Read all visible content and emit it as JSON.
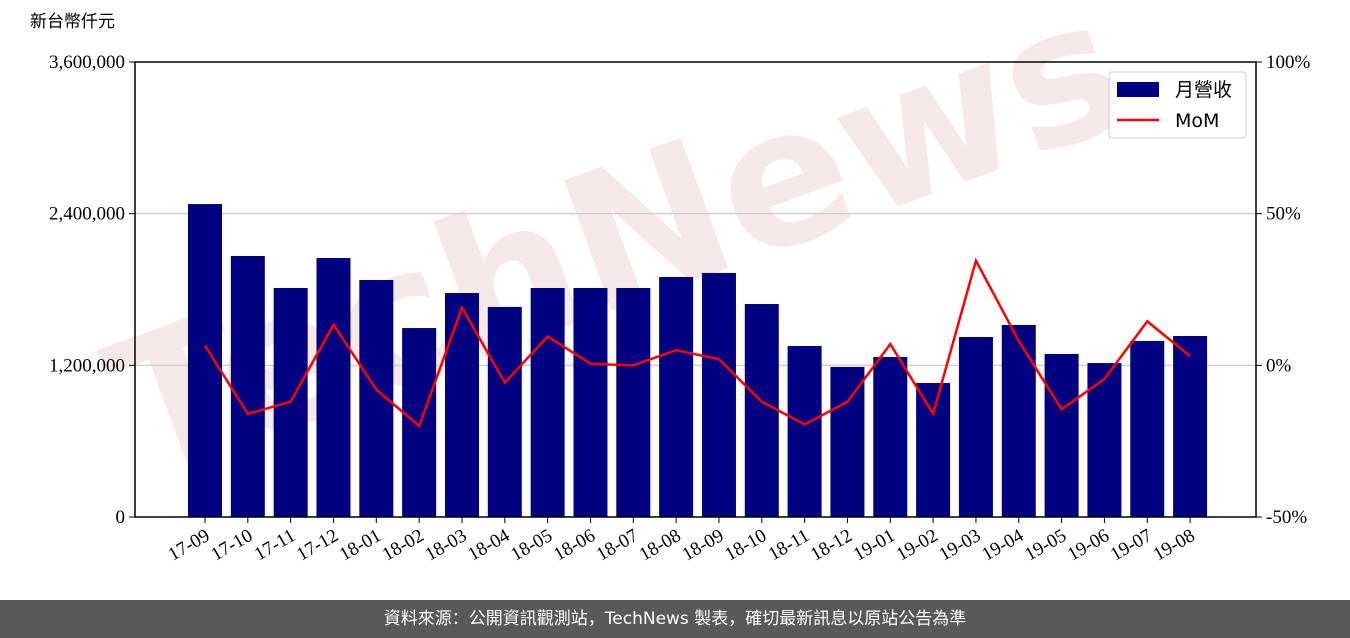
{
  "chart_data": {
    "type": "bar",
    "y_label": "新台幣仟元",
    "watermark": "TechNews",
    "categories": [
      "17-09",
      "17-10",
      "17-11",
      "17-12",
      "18-01",
      "18-02",
      "18-03",
      "18-04",
      "18-05",
      "18-06",
      "18-07",
      "18-08",
      "18-09",
      "18-10",
      "18-11",
      "18-12",
      "19-01",
      "19-02",
      "19-03",
      "19-04",
      "19-05",
      "19-06",
      "19-07",
      "19-08"
    ],
    "series": [
      {
        "name": "月營收",
        "type": "bar",
        "color": "#000080",
        "values": [
          2476000,
          2065000,
          1812000,
          2049000,
          1875000,
          1495000,
          1772000,
          1662000,
          1812000,
          1812000,
          1812000,
          1899000,
          1931000,
          1685000,
          1353000,
          1187000,
          1266000,
          1060000,
          1424000,
          1519000,
          1290000,
          1218000,
          1393000,
          1432000
        ]
      },
      {
        "name": "MoM",
        "type": "line",
        "axis": "y2",
        "color": "#ff0000",
        "values": [
          6.5,
          -16,
          -12,
          13.4,
          -8,
          -20,
          19,
          -5.7,
          9.5,
          0.5,
          0,
          5,
          2,
          -12,
          -19.5,
          -12,
          7,
          -16,
          34.5,
          8,
          -14.5,
          -4.5,
          14.5,
          3
        ]
      }
    ],
    "ylim": [
      0,
      3600000
    ],
    "yticks": [
      {
        "value": 0,
        "label": "0"
      },
      {
        "value": 1200000,
        "label": "1,200,000"
      },
      {
        "value": 2400000,
        "label": "2,400,000"
      },
      {
        "value": 3600000,
        "label": "3,600,000"
      }
    ],
    "y2lim": [
      -50,
      100
    ],
    "y2ticks": [
      {
        "value": -50,
        "label": "-50%"
      },
      {
        "value": 0,
        "label": "0%"
      },
      {
        "value": 50,
        "label": "50%"
      },
      {
        "value": 100,
        "label": "100%"
      }
    ],
    "grid": true,
    "legend": "upper right"
  },
  "footer": "資料來源：公開資訊觀測站，TechNews 製表，確切最新訊息以原站公告為準"
}
